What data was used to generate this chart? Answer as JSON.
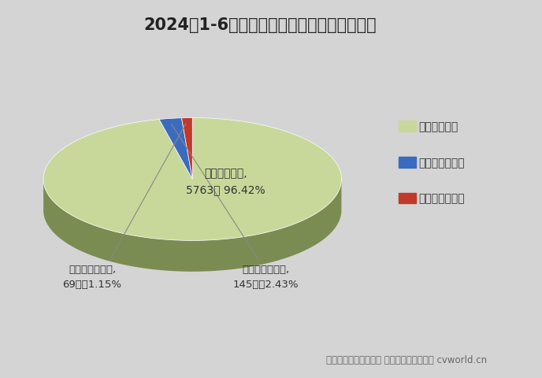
{
  "title": "2024年1-6月新能源自卸车燃料类型占比一览",
  "slices": [
    {
      "label": "纯电动自卸车",
      "value": 5763,
      "pct": 96.42,
      "color": "#c8d89a",
      "side_color": "#7a8c52"
    },
    {
      "label": "燃料电池自卸车",
      "value": 145,
      "pct": 2.43,
      "color": "#3b6bbf",
      "side_color": "#1f3d7a"
    },
    {
      "label": "混合动力自卸车",
      "value": 69,
      "pct": 1.15,
      "color": "#c0392b",
      "side_color": "#7a1a14"
    }
  ],
  "legend_labels": [
    "纯电动自卸车",
    "燃料电池自卸车",
    "混合动力自卸车"
  ],
  "legend_colors": [
    "#c8d89a",
    "#3b6bbf",
    "#c0392b"
  ],
  "label0_line1": "纯电动自卸车,",
  "label0_line2": "5763辆 96.42%",
  "label1_line1": "燃料电池自卸车,",
  "label1_line2": "145辆，2.43%",
  "label2_line1": "混合动力自卸车,",
  "label2_line2": "69辆，1.15%",
  "source_text": "数据来源：交强险统计 制图：第一商用车网 cvworld.cn",
  "bg_color": "#d4d4d4",
  "title_fontsize": 15,
  "source_fontsize": 9
}
